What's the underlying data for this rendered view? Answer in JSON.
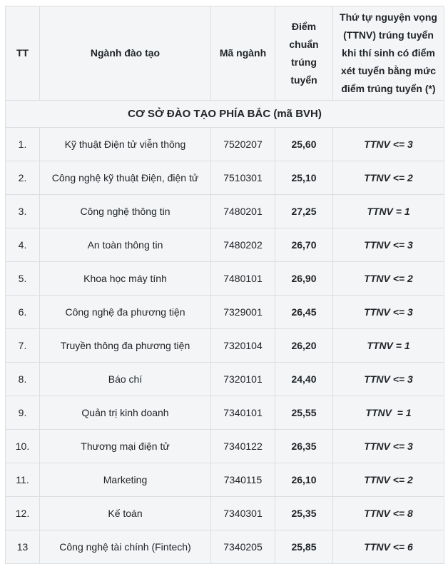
{
  "colors": {
    "page_background": "#ffffff",
    "cell_background": "#f4f5f6",
    "border": "#dcdee1",
    "text": "#212529"
  },
  "table": {
    "columns": [
      {
        "key": "tt",
        "label": "TT"
      },
      {
        "key": "major",
        "label": "Ngành đào tạo"
      },
      {
        "key": "code",
        "label": "Mã ngành"
      },
      {
        "key": "score",
        "label": "Điểm chuẩn trúng tuyển"
      },
      {
        "key": "ttnv",
        "label": "Thứ tự nguyện vọng (TTNV) trúng tuyển khi thí sinh có điểm xét tuyển bằng mức điểm trúng tuyển (*)"
      }
    ],
    "section_header": "CƠ SỞ ĐÀO TẠO PHÍA BẮC (mã BVH)",
    "rows": [
      {
        "tt": "1.",
        "major": "Kỹ thuật Điện tử viễn thông",
        "code": "7520207",
        "score": "25,60",
        "ttnv": "TTNV <= 3"
      },
      {
        "tt": "2.",
        "major": "Công nghệ kỹ thuật Điện, điện tử",
        "code": "7510301",
        "score": "25,10",
        "ttnv": "TTNV <= 2"
      },
      {
        "tt": "3.",
        "major": "Công nghệ thông tin",
        "code": "7480201",
        "score": "27,25",
        "ttnv": "TTNV = 1"
      },
      {
        "tt": "4.",
        "major": "An toàn thông tin",
        "code": "7480202",
        "score": "26,70",
        "ttnv": "TTNV <= 3"
      },
      {
        "tt": "5.",
        "major": "Khoa học máy tính",
        "code": "7480101",
        "score": "26,90",
        "ttnv": "TTNV <= 2"
      },
      {
        "tt": "6.",
        "major": "Công nghệ đa phương tiện",
        "code": "7329001",
        "score": "26,45",
        "ttnv": "TTNV <= 3"
      },
      {
        "tt": "7.",
        "major": "Truyền thông đa phương tiện",
        "code": "7320104",
        "score": "26,20",
        "ttnv": "TTNV = 1"
      },
      {
        "tt": "8.",
        "major": "Báo chí",
        "code": "7320101",
        "score": "24,40",
        "ttnv": "TTNV <= 3"
      },
      {
        "tt": "9.",
        "major": "Quản trị kinh doanh",
        "code": "7340101",
        "score": "25,55",
        "ttnv": "TTNV  = 1"
      },
      {
        "tt": "10.",
        "major": "Thương mại điện tử",
        "code": "7340122",
        "score": "26,35",
        "ttnv": "TTNV <= 3"
      },
      {
        "tt": "11.",
        "major": "Marketing",
        "code": "7340115",
        "score": "26,10",
        "ttnv": "TTNV <= 2"
      },
      {
        "tt": "12.",
        "major": "Kế toán",
        "code": "7340301",
        "score": "25,35",
        "ttnv": "TTNV <= 8"
      },
      {
        "tt": "13",
        "major": "Công nghệ tài chính (Fintech)",
        "code": "7340205",
        "score": "25,85",
        "ttnv": "TTNV <= 6"
      }
    ]
  }
}
